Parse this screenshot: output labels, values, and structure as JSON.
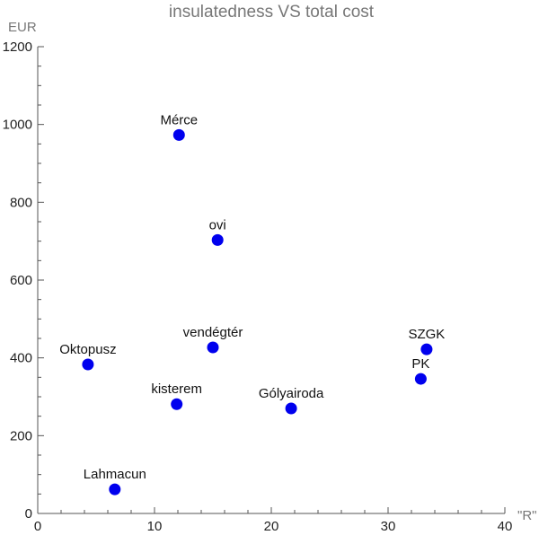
{
  "chart_data": {
    "type": "scatter",
    "title": "insulatedness VS total cost",
    "xlabel": "\"R\"",
    "ylabel": "EUR",
    "xlim": [
      0,
      40
    ],
    "ylim": [
      0,
      1200
    ],
    "x_ticks": [
      0,
      10,
      20,
      30,
      40
    ],
    "y_ticks": [
      0,
      200,
      400,
      600,
      800,
      1000,
      1200
    ],
    "grid": false,
    "marker_color": "#0000ee",
    "points": [
      {
        "label": "Mérce",
        "x": 12.1,
        "y": 973
      },
      {
        "label": "ovi",
        "x": 15.4,
        "y": 703
      },
      {
        "label": "vendégtér",
        "x": 15.0,
        "y": 427
      },
      {
        "label": "Oktopusz",
        "x": 4.3,
        "y": 383
      },
      {
        "label": "kisterem",
        "x": 11.9,
        "y": 281
      },
      {
        "label": "Gólyairoda",
        "x": 21.7,
        "y": 270
      },
      {
        "label": "SZGK",
        "x": 33.3,
        "y": 422
      },
      {
        "label": "PK",
        "x": 32.8,
        "y": 346
      },
      {
        "label": "Lahmacun",
        "x": 6.6,
        "y": 62
      }
    ]
  }
}
